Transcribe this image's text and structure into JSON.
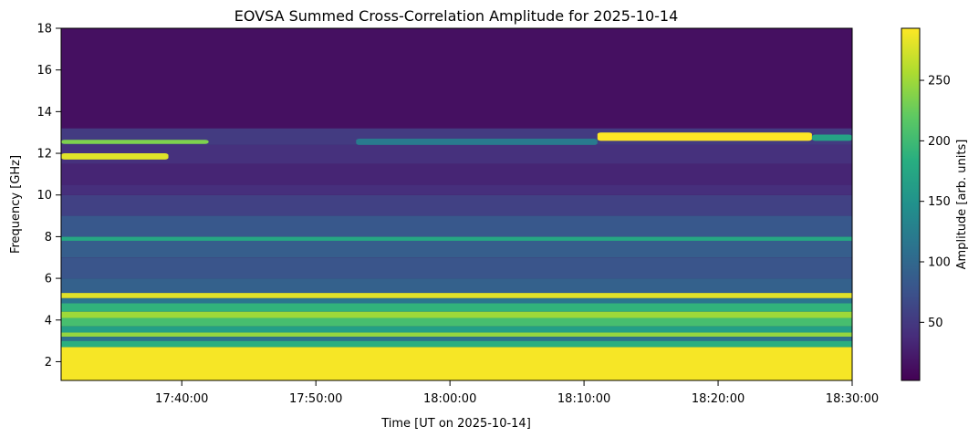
{
  "chart_data": {
    "type": "heatmap",
    "title": "EOVSA Summed Cross-Correlation Amplitude for 2025-10-14",
    "xlabel": "Time [UT on 2025-10-14]",
    "ylabel": "Frequency [GHz]",
    "colorbar_label": "Amplitude [arb. units]",
    "colormap": "viridis",
    "x_range": [
      "17:31:00",
      "18:30:00"
    ],
    "xlim": [
      0,
      59
    ],
    "x_ticks": [
      {
        "value": 9,
        "label": "17:40:00"
      },
      {
        "value": 19,
        "label": "17:50:00"
      },
      {
        "value": 29,
        "label": "18:00:00"
      },
      {
        "value": 39,
        "label": "18:10:00"
      },
      {
        "value": 49,
        "label": "18:20:00"
      },
      {
        "value": 59,
        "label": "18:30:00"
      }
    ],
    "ylim": [
      1.1,
      18
    ],
    "y_ticks": [
      2,
      4,
      6,
      8,
      10,
      12,
      14,
      16,
      18
    ],
    "clim": [
      2,
      293
    ],
    "cbar_ticks": [
      50,
      100,
      150,
      200,
      250
    ],
    "bands": [
      {
        "f0": 1.1,
        "f1": 2.7,
        "value": 290
      },
      {
        "f0": 2.7,
        "f1": 3.0,
        "value": 185
      },
      {
        "f0": 3.0,
        "f1": 3.2,
        "value": 110
      },
      {
        "f0": 3.2,
        "f1": 3.4,
        "value": 245
      },
      {
        "f0": 3.4,
        "f1": 3.7,
        "value": 165
      },
      {
        "f0": 3.7,
        "f1": 4.1,
        "value": 205
      },
      {
        "f0": 4.1,
        "f1": 4.4,
        "value": 250
      },
      {
        "f0": 4.4,
        "f1": 4.8,
        "value": 190
      },
      {
        "f0": 4.8,
        "f1": 5.05,
        "value": 115
      },
      {
        "f0": 5.05,
        "f1": 5.3,
        "value": 280
      },
      {
        "f0": 5.3,
        "f1": 6.0,
        "value": 92
      },
      {
        "f0": 6.0,
        "f1": 7.0,
        "value": 78
      },
      {
        "f0": 7.0,
        "f1": 7.8,
        "value": 88
      },
      {
        "f0": 7.8,
        "f1": 8.0,
        "value": 175
      },
      {
        "f0": 8.0,
        "f1": 9.0,
        "value": 82
      },
      {
        "f0": 9.0,
        "f1": 10.0,
        "value": 58
      },
      {
        "f0": 10.0,
        "f1": 10.5,
        "value": 40
      },
      {
        "f0": 10.5,
        "f1": 11.5,
        "value": 32
      },
      {
        "f0": 11.5,
        "f1": 12.4,
        "value": 42
      },
      {
        "f0": 12.4,
        "f1": 13.2,
        "value": 52
      },
      {
        "f0": 13.2,
        "f1": 18.0,
        "value": 14
      }
    ],
    "features": [
      {
        "t0": 0,
        "t1": 8,
        "f0": 11.7,
        "f1": 12.0,
        "value": 280
      },
      {
        "t0": 0,
        "t1": 11,
        "f0": 12.45,
        "f1": 12.65,
        "value": 235
      },
      {
        "t0": 22,
        "t1": 40,
        "f0": 12.4,
        "f1": 12.7,
        "value": 120
      },
      {
        "t0": 40,
        "t1": 56,
        "f0": 12.6,
        "f1": 13.0,
        "value": 293
      },
      {
        "t0": 56,
        "t1": 59,
        "f0": 12.6,
        "f1": 12.9,
        "value": 170
      }
    ]
  }
}
